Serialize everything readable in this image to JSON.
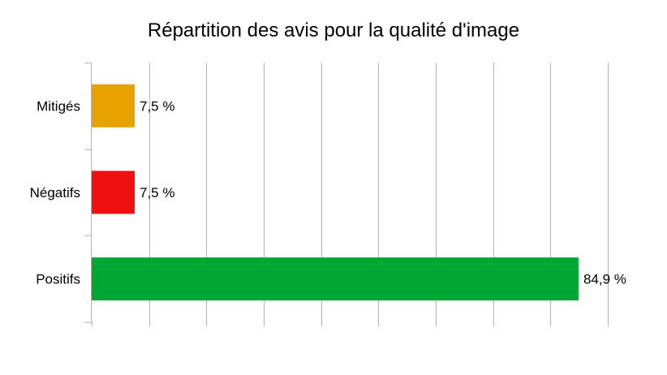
{
  "chart_data": {
    "type": "bar",
    "orientation": "horizontal",
    "title": "Répartition des avis pour la qualité d'image",
    "categories": [
      "Mitigés",
      "Négatifs",
      "Positifs"
    ],
    "values": [
      7.5,
      7.5,
      84.9
    ],
    "value_labels": [
      "7,5 %",
      "7,5 %",
      "84,9 %"
    ],
    "colors": [
      "#e8a200",
      "#f01010",
      "#00a733"
    ],
    "xlim": [
      0,
      90
    ],
    "grid": true,
    "legend": "none",
    "xlabel": "",
    "ylabel": ""
  }
}
